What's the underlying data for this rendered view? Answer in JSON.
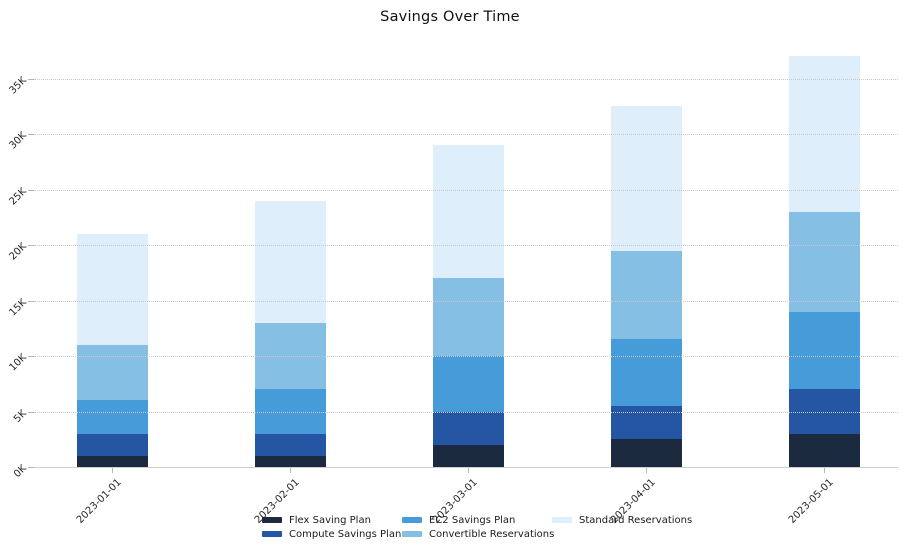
{
  "title": "Savings Over Time",
  "chart_data": {
    "type": "bar",
    "stacked": true,
    "title": "Savings Over Time",
    "xlabel": "",
    "ylabel": "",
    "categories": [
      "2023-01-01",
      "2023-02-01",
      "2023-03-01",
      "2023-04-01",
      "2023-05-01"
    ],
    "series": [
      {
        "name": "Flex Saving Plan",
        "color": "#1b2a3f",
        "values": [
          1000,
          1000,
          2000,
          2500,
          3000
        ]
      },
      {
        "name": "Compute Savings Plan",
        "color": "#2456a3",
        "values": [
          2000,
          2000,
          3000,
          3000,
          4000
        ]
      },
      {
        "name": "EC2 Savings Plan",
        "color": "#459cd8",
        "values": [
          3000,
          4000,
          5000,
          6000,
          7000
        ]
      },
      {
        "name": "Convertible Reservations",
        "color": "#85c0e4",
        "values": [
          5000,
          6000,
          7000,
          8000,
          9000
        ]
      },
      {
        "name": "Standard Reservations",
        "color": "#deeefa",
        "values": [
          10000,
          11000,
          12000,
          13000,
          14000
        ]
      }
    ],
    "stack_totals": [
      21000,
      24000,
      29000,
      32500,
      37000
    ],
    "y_axis": {
      "range": [
        0,
        37570
      ],
      "ticks": [
        {
          "value": 0,
          "label": "0K"
        },
        {
          "value": 5000,
          "label": "5K"
        },
        {
          "value": 10000,
          "label": "10K"
        },
        {
          "value": 15000,
          "label": "15K"
        },
        {
          "value": 20000,
          "label": "20K"
        },
        {
          "value": 25000,
          "label": "25K"
        },
        {
          "value": 30000,
          "label": "30K"
        },
        {
          "value": 35000,
          "label": "35K"
        }
      ]
    },
    "grid": "horizontal-dotted",
    "legend_position": "bottom",
    "tick_label_rotation_deg": 45
  }
}
